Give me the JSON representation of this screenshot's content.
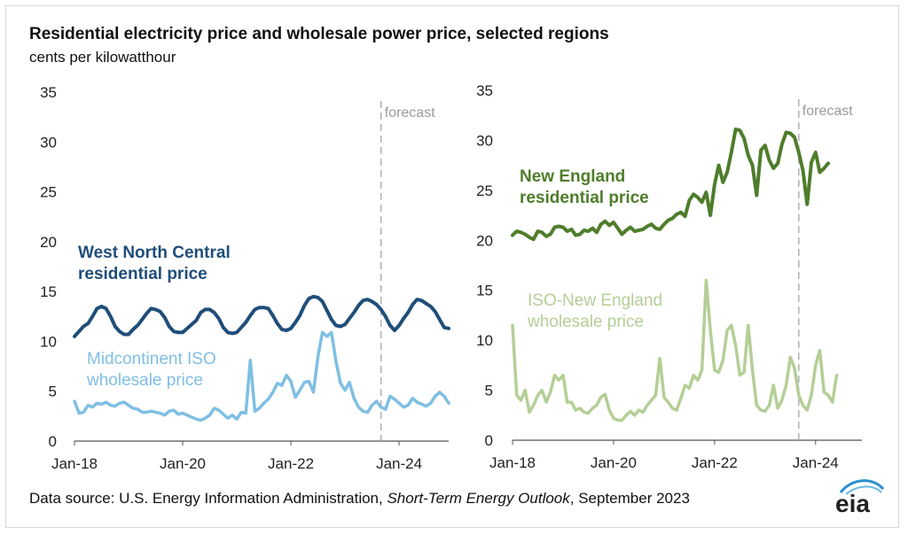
{
  "title": "Residential electricity price and wholesale power price, selected regions",
  "subtitle": "cents per kilowatthour",
  "source": {
    "prefix": "Data source: U.S. Energy Information Administration, ",
    "italic": "Short-Term Energy Outlook",
    "suffix": ", September 2023"
  },
  "logo_text": "eia",
  "colors": {
    "wnc_residential": "#1f4e79",
    "miso_wholesale": "#7fbfe3",
    "ne_residential": "#4e7d2b",
    "isone_wholesale": "#b4cf96",
    "forecast_line": "#b0b0b0",
    "logo_swoosh": "#2a8fd0"
  },
  "chart_data": [
    {
      "type": "line",
      "ylim": [
        0,
        35
      ],
      "yticks": [
        0,
        5,
        10,
        15,
        20,
        25,
        30,
        35
      ],
      "xlim": [
        "2018-01",
        "2024-12"
      ],
      "xtick_labels": [
        "Jan-18",
        "Jan-20",
        "Jan-22",
        "Jan-24"
      ],
      "forecast_label": "forecast",
      "forecast_start": "2023-09",
      "series": [
        {
          "name": "West North Central residential price",
          "label_lines": [
            "West North Central",
            "residential price"
          ],
          "start": "2018-01",
          "values": [
            10.5,
            11.0,
            11.5,
            11.8,
            12.5,
            13.3,
            13.5,
            13.3,
            12.5,
            11.5,
            11.0,
            10.7,
            10.7,
            11.2,
            11.6,
            12.2,
            12.8,
            13.3,
            13.2,
            13.0,
            12.4,
            11.5,
            11.0,
            10.9,
            10.9,
            11.3,
            11.7,
            12.1,
            12.9,
            13.2,
            13.2,
            12.9,
            12.3,
            11.4,
            10.9,
            10.8,
            10.9,
            11.4,
            11.9,
            12.6,
            13.2,
            13.4,
            13.4,
            13.3,
            12.6,
            11.8,
            11.2,
            11.1,
            11.3,
            11.9,
            12.6,
            13.6,
            14.3,
            14.5,
            14.4,
            14.0,
            13.1,
            12.2,
            11.6,
            11.5,
            11.7,
            12.3,
            12.9,
            13.6,
            14.1,
            14.2,
            14.0,
            13.7,
            13.2,
            12.5,
            11.6,
            11.1,
            11.6,
            12.3,
            12.9,
            13.7,
            14.2,
            14.1,
            13.8,
            13.5,
            13.0,
            12.2,
            11.4,
            11.3
          ]
        },
        {
          "name": "Midcontinent ISO wholesale price",
          "label_lines": [
            "Midcontinent ISO",
            "wholesale price"
          ],
          "start": "2018-01",
          "values": [
            4.0,
            2.8,
            2.9,
            3.6,
            3.4,
            3.8,
            3.7,
            3.9,
            3.6,
            3.5,
            3.8,
            3.9,
            3.6,
            3.3,
            3.2,
            2.9,
            2.9,
            3.0,
            2.9,
            2.8,
            2.6,
            3.0,
            3.1,
            2.7,
            2.8,
            2.6,
            2.4,
            2.2,
            2.1,
            2.3,
            2.6,
            3.3,
            3.1,
            2.7,
            2.3,
            2.6,
            2.2,
            2.9,
            2.8,
            8.1,
            3.0,
            3.3,
            3.8,
            4.2,
            4.9,
            5.8,
            5.6,
            6.6,
            6.0,
            4.4,
            5.1,
            5.9,
            6.0,
            4.9,
            8.5,
            10.9,
            10.5,
            10.9,
            8.0,
            5.8,
            5.1,
            5.9,
            4.3,
            3.4,
            3.0,
            2.9,
            3.6,
            4.0,
            3.4,
            3.2,
            4.5,
            4.2,
            3.8,
            3.4,
            3.6,
            4.3,
            3.9,
            3.7,
            3.5,
            3.8,
            4.5,
            4.9,
            4.5,
            3.8
          ]
        }
      ]
    },
    {
      "type": "line",
      "ylim": [
        0,
        35
      ],
      "yticks": [
        0,
        5,
        10,
        15,
        20,
        25,
        30,
        35
      ],
      "xlim": [
        "2018-01",
        "2024-12"
      ],
      "xtick_labels": [
        "Jan-18",
        "Jan-20",
        "Jan-22",
        "Jan-24"
      ],
      "forecast_label": "forecast",
      "forecast_start": "2023-09",
      "series": [
        {
          "name": "New England residential price",
          "label_lines": [
            "New England",
            "residential price"
          ],
          "start": "2018-01",
          "values": [
            20.5,
            20.9,
            20.8,
            20.6,
            20.3,
            20.1,
            20.9,
            20.8,
            20.4,
            20.6,
            21.3,
            21.4,
            21.3,
            20.9,
            21.1,
            20.5,
            20.6,
            21.0,
            20.9,
            21.2,
            20.8,
            21.6,
            21.9,
            21.5,
            21.8,
            21.2,
            20.6,
            21.0,
            21.3,
            20.9,
            21.0,
            21.1,
            21.4,
            21.6,
            21.2,
            21.1,
            21.6,
            22.0,
            22.2,
            22.6,
            22.8,
            22.4,
            24.0,
            24.6,
            24.3,
            23.8,
            24.8,
            22.5,
            25.6,
            27.5,
            25.8,
            26.8,
            28.8,
            31.1,
            31.0,
            30.2,
            28.5,
            27.5,
            24.5,
            29.0,
            29.5,
            28.0,
            27.2,
            27.7,
            29.6,
            30.8,
            30.7,
            30.3,
            28.8,
            27.0,
            23.6,
            27.8,
            28.8,
            26.8,
            27.2,
            27.7
          ]
        },
        {
          "name": "ISO-New England wholesale price",
          "label_lines": [
            "ISO-New England",
            "wholesale price"
          ],
          "start": "2018-01",
          "values": [
            11.5,
            4.5,
            4.0,
            5.0,
            2.8,
            3.5,
            4.5,
            5.0,
            3.8,
            4.8,
            6.5,
            6.0,
            6.5,
            3.8,
            3.8,
            3.0,
            3.2,
            2.8,
            2.7,
            3.2,
            3.5,
            4.3,
            4.6,
            3.0,
            2.2,
            2.0,
            2.0,
            2.5,
            2.9,
            2.5,
            3.0,
            2.8,
            3.5,
            4.0,
            4.5,
            8.2,
            4.3,
            3.8,
            3.2,
            3.0,
            4.2,
            5.5,
            5.2,
            6.5,
            6.0,
            7.0,
            16.0,
            11.0,
            7.0,
            6.8,
            8.0,
            11.0,
            11.5,
            9.5,
            6.5,
            6.8,
            11.5,
            7.0,
            3.5,
            3.0,
            2.9,
            3.5,
            5.5,
            3.2,
            4.0,
            5.5,
            8.3,
            7.2,
            4.5,
            3.5,
            3.0,
            4.5,
            7.5,
            9.0,
            4.8,
            4.5,
            3.8,
            6.5
          ]
        }
      ]
    }
  ]
}
